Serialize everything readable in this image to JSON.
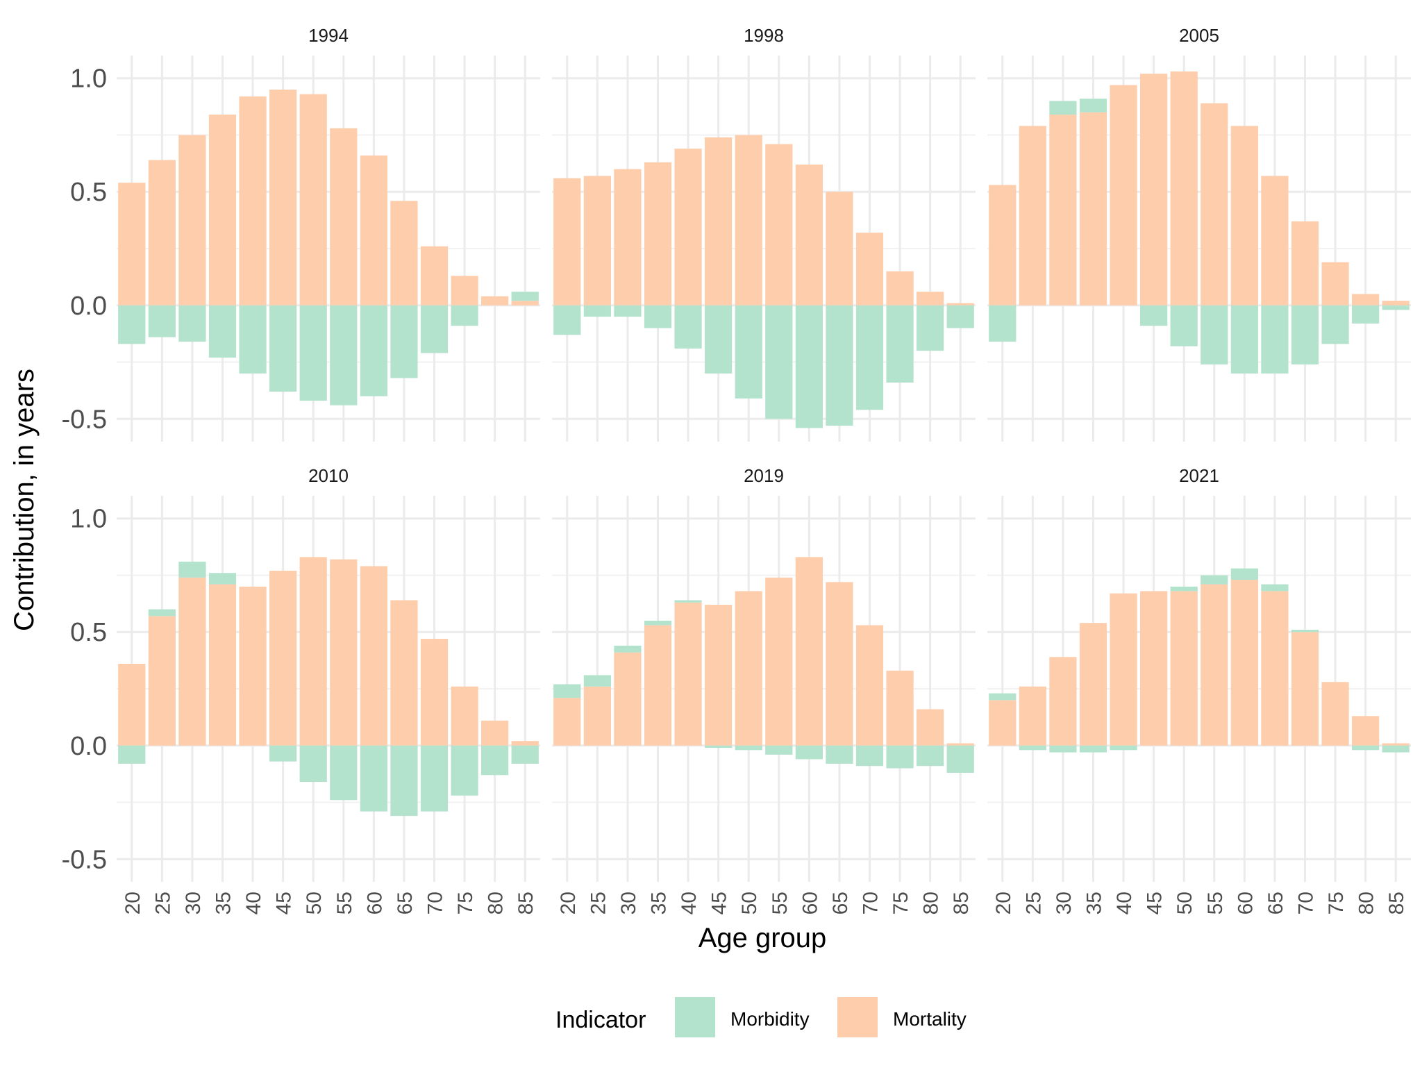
{
  "chart_data": {
    "type": "bar",
    "stacked": true,
    "ylabel": "Contribution, in years",
    "xlabel": "Age group",
    "ylim": [
      -0.6,
      1.1
    ],
    "y_ticks": [
      "1.0",
      "0.5",
      "0.0",
      "-0.5"
    ],
    "y_tick_values": [
      1.0,
      0.5,
      0.0,
      -0.5
    ],
    "categories": [
      "20",
      "25",
      "30",
      "35",
      "40",
      "45",
      "50",
      "55",
      "60",
      "65",
      "70",
      "75",
      "80",
      "85"
    ],
    "grid": true,
    "legend": {
      "title": "Indicator",
      "position": "bottom",
      "items": [
        {
          "name": "Morbidity",
          "color": "#b3e2cd"
        },
        {
          "name": "Mortality",
          "color": "#fdcdac"
        }
      ]
    },
    "panels": [
      {
        "title": "1994",
        "series": [
          {
            "name": "Mortality",
            "values": [
              0.54,
              0.64,
              0.75,
              0.84,
              0.92,
              0.95,
              0.93,
              0.78,
              0.66,
              0.46,
              0.26,
              0.13,
              0.04,
              0.02
            ]
          },
          {
            "name": "Morbidity",
            "values": [
              -0.17,
              -0.14,
              -0.16,
              -0.23,
              -0.3,
              -0.38,
              -0.42,
              -0.44,
              -0.4,
              -0.32,
              -0.21,
              -0.09,
              0.0,
              0.04
            ]
          }
        ]
      },
      {
        "title": "1998",
        "series": [
          {
            "name": "Mortality",
            "values": [
              0.56,
              0.57,
              0.6,
              0.63,
              0.69,
              0.74,
              0.75,
              0.71,
              0.62,
              0.5,
              0.32,
              0.15,
              0.06,
              0.01
            ]
          },
          {
            "name": "Morbidity",
            "values": [
              -0.13,
              -0.05,
              -0.05,
              -0.1,
              -0.19,
              -0.3,
              -0.41,
              -0.5,
              -0.54,
              -0.53,
              -0.46,
              -0.34,
              -0.2,
              -0.1
            ]
          }
        ]
      },
      {
        "title": "2005",
        "series": [
          {
            "name": "Mortality",
            "values": [
              0.53,
              0.79,
              0.84,
              0.85,
              0.97,
              1.02,
              1.03,
              0.89,
              0.79,
              0.57,
              0.37,
              0.19,
              0.05,
              0.02
            ]
          },
          {
            "name": "Morbidity",
            "values": [
              -0.16,
              0.0,
              0.06,
              0.06,
              0.0,
              -0.09,
              -0.18,
              -0.26,
              -0.3,
              -0.3,
              -0.26,
              -0.17,
              -0.08,
              -0.02
            ]
          }
        ]
      },
      {
        "title": "2010",
        "series": [
          {
            "name": "Mortality",
            "values": [
              0.36,
              0.57,
              0.74,
              0.71,
              0.7,
              0.77,
              0.83,
              0.82,
              0.79,
              0.64,
              0.47,
              0.26,
              0.11,
              0.02
            ]
          },
          {
            "name": "Morbidity",
            "values": [
              -0.08,
              0.03,
              0.07,
              0.05,
              0.0,
              -0.07,
              -0.16,
              -0.24,
              -0.29,
              -0.31,
              -0.29,
              -0.22,
              -0.13,
              -0.08
            ]
          }
        ]
      },
      {
        "title": "2019",
        "series": [
          {
            "name": "Mortality",
            "values": [
              0.21,
              0.26,
              0.41,
              0.53,
              0.63,
              0.62,
              0.68,
              0.74,
              0.83,
              0.72,
              0.53,
              0.33,
              0.16,
              0.01
            ]
          },
          {
            "name": "Morbidity",
            "values": [
              0.06,
              0.05,
              0.03,
              0.02,
              0.01,
              -0.01,
              -0.02,
              -0.04,
              -0.06,
              -0.08,
              -0.09,
              -0.1,
              -0.09,
              -0.12
            ]
          }
        ]
      },
      {
        "title": "2021",
        "series": [
          {
            "name": "Mortality",
            "values": [
              0.2,
              0.26,
              0.39,
              0.54,
              0.67,
              0.68,
              0.68,
              0.71,
              0.73,
              0.68,
              0.5,
              0.28,
              0.13,
              0.01
            ]
          },
          {
            "name": "Morbidity",
            "values": [
              0.03,
              -0.02,
              -0.03,
              -0.03,
              -0.02,
              0.0,
              0.02,
              0.04,
              0.05,
              0.03,
              0.01,
              0.0,
              -0.02,
              -0.03
            ]
          }
        ]
      }
    ]
  }
}
